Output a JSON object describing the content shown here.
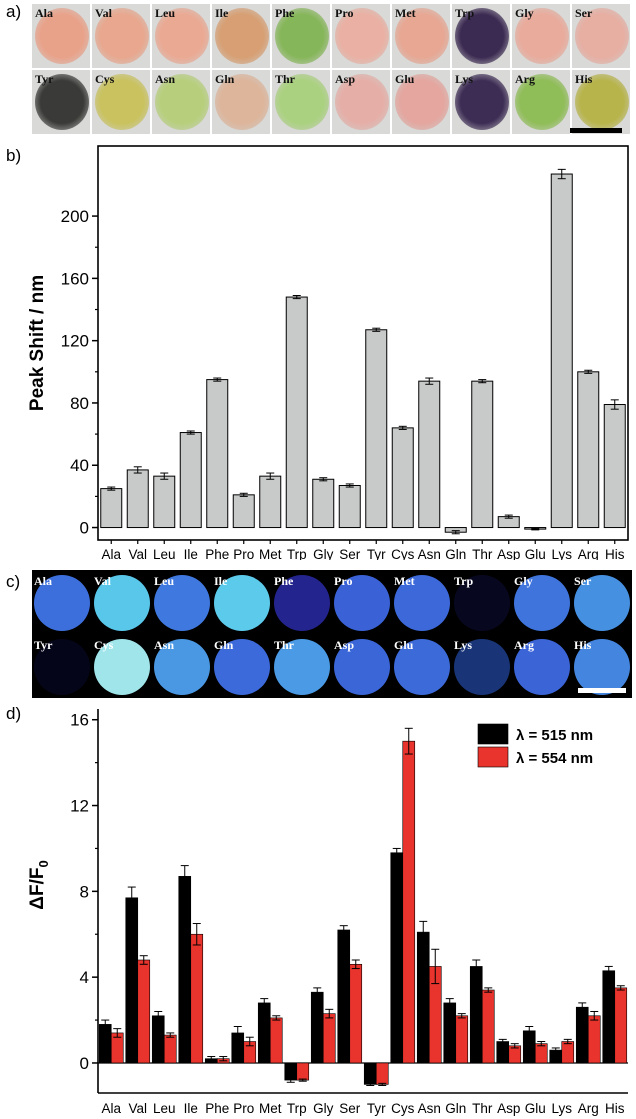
{
  "panel_labels": {
    "a": "a)",
    "b": "b)",
    "c": "c)",
    "d": "d)"
  },
  "amino_acids": [
    "Ala",
    "Val",
    "Leu",
    "Ile",
    "Phe",
    "Pro",
    "Met",
    "Trp",
    "Gly",
    "Ser",
    "Tyr",
    "Cys",
    "Asn",
    "Gln",
    "Thr",
    "Asp",
    "Glu",
    "Lys",
    "Arg",
    "His"
  ],
  "panel_a_tiles": [
    {
      "label": "Ala",
      "color": "#e9a28a"
    },
    {
      "label": "Val",
      "color": "#e8a78e"
    },
    {
      "label": "Leu",
      "color": "#eaa993"
    },
    {
      "label": "Ile",
      "color": "#d79f73"
    },
    {
      "label": "Phe",
      "color": "#86b65a"
    },
    {
      "label": "Pro",
      "color": "#eab0a3"
    },
    {
      "label": "Met",
      "color": "#e7a793"
    },
    {
      "label": "Trp",
      "color": "#3b2a52"
    },
    {
      "label": "Gly",
      "color": "#e9ab9c"
    },
    {
      "label": "Ser",
      "color": "#e7aea2"
    },
    {
      "label": "Tyr",
      "color": "#3a3b38"
    },
    {
      "label": "Cys",
      "color": "#c9c25e"
    },
    {
      "label": "Asn",
      "color": "#b7cf7c"
    },
    {
      "label": "Gln",
      "color": "#ddb59b"
    },
    {
      "label": "Thr",
      "color": "#aad17f"
    },
    {
      "label": "Asp",
      "color": "#e5afa8"
    },
    {
      "label": "Glu",
      "color": "#e4a69f"
    },
    {
      "label": "Lys",
      "color": "#3d2d55"
    },
    {
      "label": "Arg",
      "color": "#8fbd57"
    },
    {
      "label": "His",
      "color": "#b7b44b"
    }
  ],
  "panel_c_tiles": [
    {
      "label": "Ala",
      "color": "#3d6fdc"
    },
    {
      "label": "Val",
      "color": "#58c7ea"
    },
    {
      "label": "Leu",
      "color": "#3f78df"
    },
    {
      "label": "Ile",
      "color": "#5ccaea"
    },
    {
      "label": "Phe",
      "color": "#24248e"
    },
    {
      "label": "Pro",
      "color": "#3a62d6"
    },
    {
      "label": "Met",
      "color": "#3c68d9"
    },
    {
      "label": "Trp",
      "color": "#070720"
    },
    {
      "label": "Gly",
      "color": "#3e74dc"
    },
    {
      "label": "Ser",
      "color": "#4690e2"
    },
    {
      "label": "Tyr",
      "color": "#05051a"
    },
    {
      "label": "Cys",
      "color": "#9fe5ea"
    },
    {
      "label": "Asn",
      "color": "#4a98e4"
    },
    {
      "label": "Gln",
      "color": "#3c6ada"
    },
    {
      "label": "Thr",
      "color": "#4a9ae5"
    },
    {
      "label": "Asp",
      "color": "#3b66d8"
    },
    {
      "label": "Glu",
      "color": "#3c6ad9"
    },
    {
      "label": "Lys",
      "color": "#193578"
    },
    {
      "label": "Arg",
      "color": "#3b64d7"
    },
    {
      "label": "His",
      "color": "#4486df"
    }
  ],
  "chart_data": [
    {
      "type": "bar",
      "ylabel": "Peak Shift / nm",
      "categories": [
        "Ala",
        "Val",
        "Leu",
        "Ile",
        "Phe",
        "Pro",
        "Met",
        "Trp",
        "Gly",
        "Ser",
        "Tyr",
        "Cys",
        "Asn",
        "Gln",
        "Thr",
        "Asp",
        "Glu",
        "Lys",
        "Arg",
        "His"
      ],
      "values": [
        25,
        37,
        33,
        61,
        95,
        21,
        33,
        148,
        31,
        27,
        127,
        64,
        94,
        -3,
        94,
        7,
        -1,
        227,
        100,
        79
      ],
      "errors": [
        1,
        2,
        2,
        1,
        1,
        1,
        2,
        1,
        1,
        1,
        1,
        1,
        2,
        1,
        1,
        1,
        0.5,
        3,
        1,
        3
      ],
      "ylim": [
        -8,
        245
      ],
      "yticks": [
        0,
        40,
        80,
        120,
        160,
        200
      ],
      "bar_color": "#c8c9c9"
    },
    {
      "type": "bar",
      "ylabel": "ΔF/F",
      "ylabel_sub": "0",
      "categories": [
        "Ala",
        "Val",
        "Leu",
        "Ile",
        "Phe",
        "Pro",
        "Met",
        "Trp",
        "Gly",
        "Ser",
        "Tyr",
        "Cys",
        "Asn",
        "Gln",
        "Thr",
        "Asp",
        "Glu",
        "Lys",
        "Arg",
        "His"
      ],
      "series": [
        {
          "name": "λ = 515 nm",
          "color": "#000000",
          "values": [
            1.8,
            7.7,
            2.2,
            8.7,
            0.2,
            1.4,
            2.8,
            -0.8,
            3.3,
            6.2,
            -1.0,
            9.8,
            6.1,
            2.8,
            4.5,
            1.0,
            1.5,
            0.6,
            2.6,
            4.3
          ],
          "errors": [
            0.2,
            0.5,
            0.2,
            0.5,
            0.1,
            0.3,
            0.2,
            0.1,
            0.2,
            0.2,
            0.05,
            0.2,
            0.5,
            0.2,
            0.3,
            0.1,
            0.2,
            0.1,
            0.2,
            0.2
          ]
        },
        {
          "name": "λ = 554 nm",
          "color": "#e8342c",
          "values": [
            1.4,
            4.8,
            1.3,
            6.0,
            0.2,
            1.0,
            2.1,
            -0.8,
            2.3,
            4.6,
            -1.0,
            15.0,
            4.5,
            2.2,
            3.4,
            0.8,
            0.9,
            1.0,
            2.2,
            3.5
          ],
          "errors": [
            0.2,
            0.2,
            0.1,
            0.5,
            0.1,
            0.2,
            0.1,
            0.05,
            0.2,
            0.2,
            0.05,
            0.6,
            0.8,
            0.1,
            0.1,
            0.1,
            0.1,
            0.1,
            0.2,
            0.1
          ]
        }
      ],
      "ylim": [
        -1.4,
        16.5
      ],
      "yticks": [
        0,
        4,
        8,
        12,
        16
      ],
      "legend_position": "top-right"
    }
  ]
}
